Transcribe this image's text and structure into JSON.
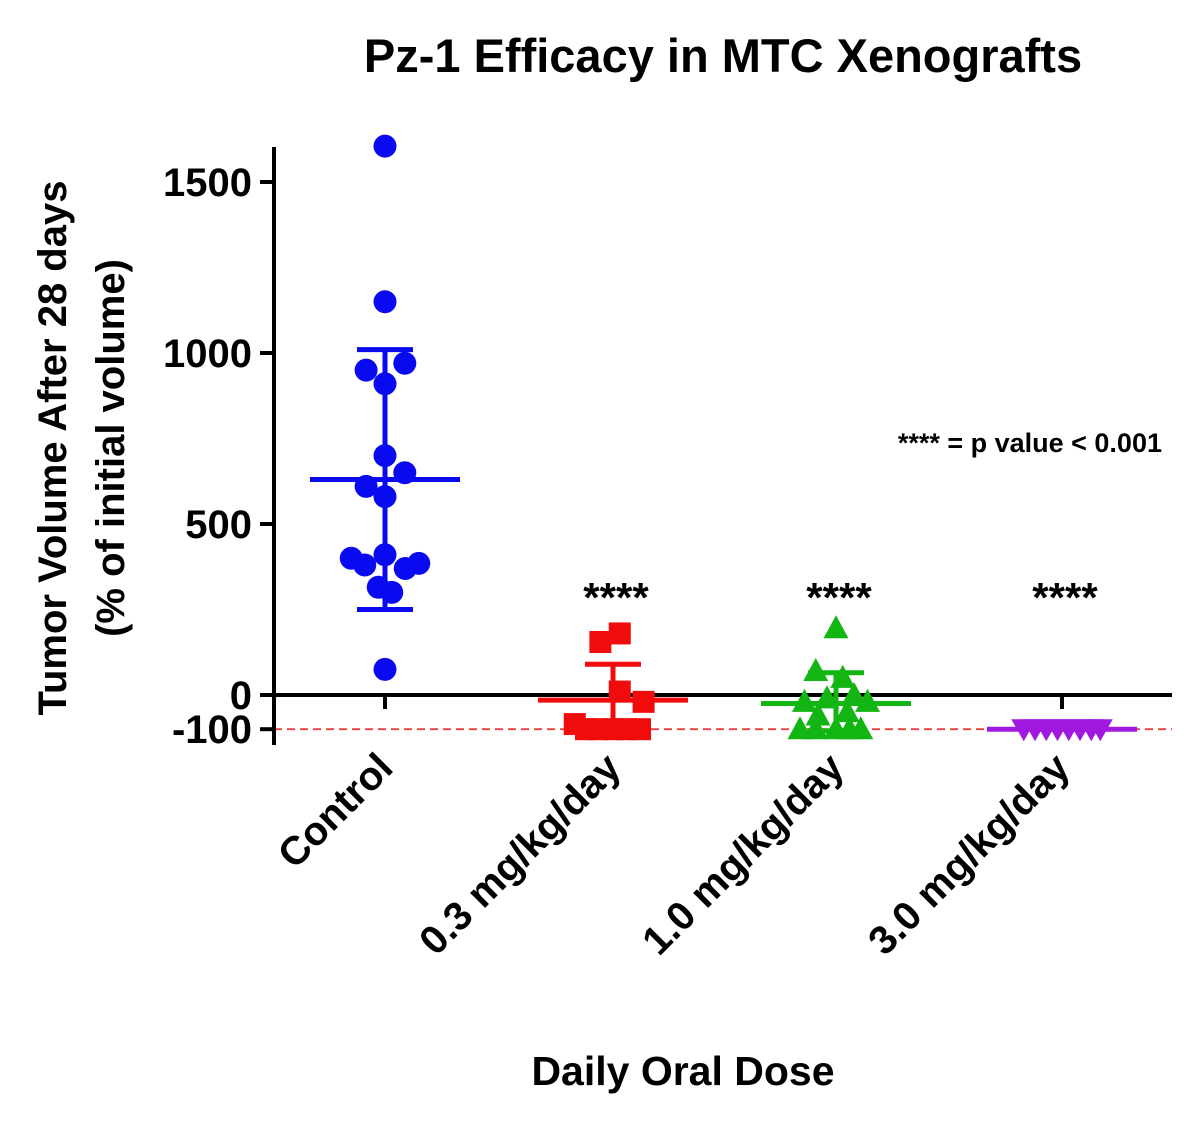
{
  "chart_data": {
    "type": "scatter",
    "title": "Pz-1 Efficacy in MTC Xenografts",
    "xlabel": "Daily Oral Dose",
    "ylabel_line1": "Tumor Volume After 28 days",
    "ylabel_line2": "(% of initial volume)",
    "ylim": [
      -110,
      1600
    ],
    "y_ticks": [
      {
        "value": 1500,
        "label": "1500"
      },
      {
        "value": 1000,
        "label": "1000"
      },
      {
        "value": 500,
        "label": "500"
      },
      {
        "value": 0,
        "label": "0"
      },
      {
        "value": -100,
        "label": "-100"
      }
    ],
    "reference_line": {
      "value": -100,
      "color": "#e8413c",
      "style": "dashed"
    },
    "annotation": "**** = p value < 0.001",
    "categories": [
      "Control",
      "0.3 mg/kg/day",
      "1.0 mg/kg/day",
      "3.0 mg/kg/day"
    ],
    "series": [
      {
        "category": "Control",
        "marker": "circle",
        "color": "#0a0af0",
        "mean": 630,
        "sd_upper": 1010,
        "sd_lower": 250,
        "significance": "",
        "points": [
          {
            "offset": 0,
            "value": 1605
          },
          {
            "offset": 0,
            "value": 1150
          },
          {
            "offset": -0.42,
            "value": 950
          },
          {
            "offset": 0,
            "value": 910
          },
          {
            "offset": 0.44,
            "value": 970
          },
          {
            "offset": 0,
            "value": 700
          },
          {
            "offset": 0.44,
            "value": 650
          },
          {
            "offset": -0.42,
            "value": 610
          },
          {
            "offset": 0,
            "value": 580
          },
          {
            "offset": -0.75,
            "value": 400
          },
          {
            "offset": -0.45,
            "value": 380
          },
          {
            "offset": 0,
            "value": 410
          },
          {
            "offset": 0.45,
            "value": 370
          },
          {
            "offset": 0.75,
            "value": 385
          },
          {
            "offset": -0.15,
            "value": 315
          },
          {
            "offset": 0.15,
            "value": 300
          },
          {
            "offset": 0,
            "value": 75
          }
        ]
      },
      {
        "category": "0.3 mg/kg/day",
        "marker": "square",
        "color": "#f00c0c",
        "mean": -15,
        "sd_upper": 90,
        "sd_lower": -95,
        "significance": "****",
        "points": [
          {
            "offset": -0.28,
            "value": 155
          },
          {
            "offset": 0.15,
            "value": 180
          },
          {
            "offset": 0.15,
            "value": 10
          },
          {
            "offset": 0.68,
            "value": -20
          },
          {
            "offset": -0.85,
            "value": -85
          },
          {
            "offset": -0.35,
            "value": -100
          },
          {
            "offset": 0,
            "value": -100
          },
          {
            "offset": 0.3,
            "value": -100
          },
          {
            "offset": 0.6,
            "value": -100
          },
          {
            "offset": -0.6,
            "value": -100
          }
        ]
      },
      {
        "category": "1.0 mg/kg/day",
        "marker": "triangle-up",
        "color": "#12b512",
        "mean": -25,
        "sd_upper": 65,
        "sd_lower": -105,
        "significance": "****",
        "points": [
          {
            "offset": 0,
            "value": 195
          },
          {
            "offset": -0.45,
            "value": 70
          },
          {
            "offset": 0.15,
            "value": 50
          },
          {
            "offset": -0.7,
            "value": -20
          },
          {
            "offset": -0.2,
            "value": -10
          },
          {
            "offset": 0.4,
            "value": 0
          },
          {
            "offset": 0.7,
            "value": -20
          },
          {
            "offset": -0.4,
            "value": -60
          },
          {
            "offset": 0.25,
            "value": -50
          },
          {
            "offset": -0.8,
            "value": -100
          },
          {
            "offset": -0.45,
            "value": -100
          },
          {
            "offset": 0,
            "value": -100
          },
          {
            "offset": 0.3,
            "value": -100
          },
          {
            "offset": 0.55,
            "value": -100
          }
        ]
      },
      {
        "category": "3.0 mg/kg/day",
        "marker": "triangle-down",
        "color": "#a119e0",
        "mean": -100,
        "sd_upper": -100,
        "sd_lower": -100,
        "significance": "****",
        "points": [
          {
            "offset": -0.85,
            "value": -100
          },
          {
            "offset": -0.6,
            "value": -100
          },
          {
            "offset": -0.35,
            "value": -100
          },
          {
            "offset": -0.1,
            "value": -100
          },
          {
            "offset": 0.15,
            "value": -100
          },
          {
            "offset": 0.4,
            "value": -100
          },
          {
            "offset": 0.65,
            "value": -100
          },
          {
            "offset": 0.85,
            "value": -100
          }
        ]
      }
    ]
  }
}
